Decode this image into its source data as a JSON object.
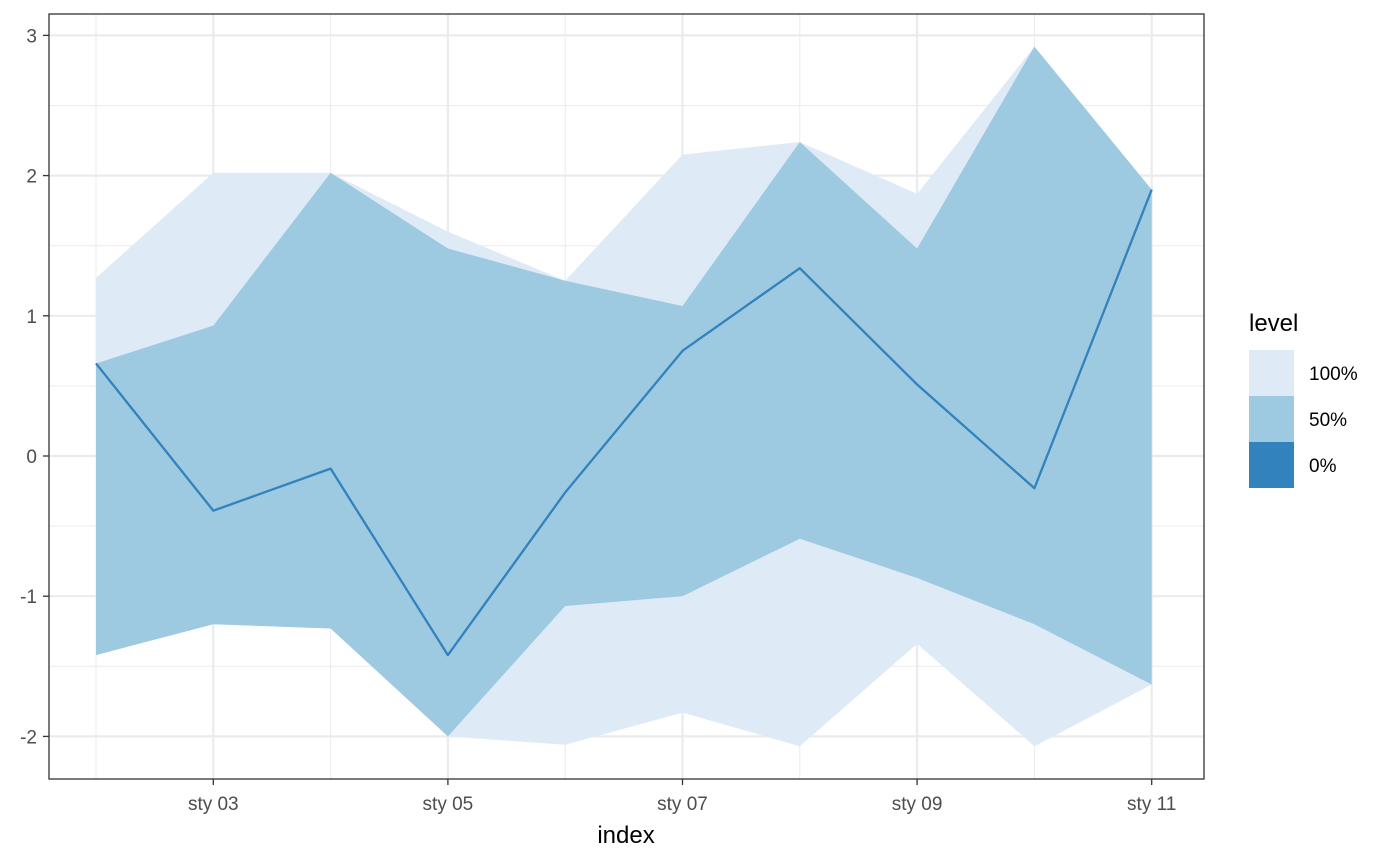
{
  "chart_data": {
    "type": "area",
    "xlabel": "index",
    "ylabel": "",
    "title": "",
    "x": [
      "sty 02",
      "sty 03",
      "sty 04",
      "sty 05",
      "sty 06",
      "sty 07",
      "sty 08",
      "sty 09",
      "sty 10",
      "sty 11"
    ],
    "x_tick_labels": [
      "sty 03",
      "sty 05",
      "sty 07",
      "sty 09",
      "sty 11"
    ],
    "y_ticks": [
      -2,
      -1,
      0,
      1,
      2,
      3
    ],
    "ylim": [
      -2.3,
      3.15
    ],
    "grid": true,
    "legend": {
      "title": "level",
      "placement": "right",
      "entries": [
        {
          "label": "100%",
          "color": "#deebf7"
        },
        {
          "label": "50%",
          "color": "#9ecae1"
        },
        {
          "label": "0%",
          "color": "#3182bd"
        }
      ]
    },
    "series": [
      {
        "name": "100%",
        "lower": [
          -1.42,
          -1.2,
          -1.23,
          -2.0,
          -2.06,
          -1.83,
          -2.07,
          -1.34,
          -2.07,
          -1.63
        ],
        "upper": [
          1.27,
          2.02,
          2.02,
          1.6,
          1.25,
          2.15,
          2.24,
          1.87,
          2.92,
          1.9
        ]
      },
      {
        "name": "50%",
        "lower": [
          -1.42,
          -1.2,
          -1.23,
          -2.0,
          -1.07,
          -1.0,
          -0.59,
          -0.87,
          -1.2,
          -1.63
        ],
        "upper": [
          0.66,
          0.93,
          2.02,
          1.48,
          1.25,
          1.07,
          2.24,
          1.48,
          2.92,
          1.9
        ]
      },
      {
        "name": "0%",
        "values": [
          0.66,
          -0.39,
          -0.09,
          -1.42,
          -0.26,
          0.75,
          1.34,
          0.51,
          -0.23,
          1.9
        ]
      }
    ]
  }
}
